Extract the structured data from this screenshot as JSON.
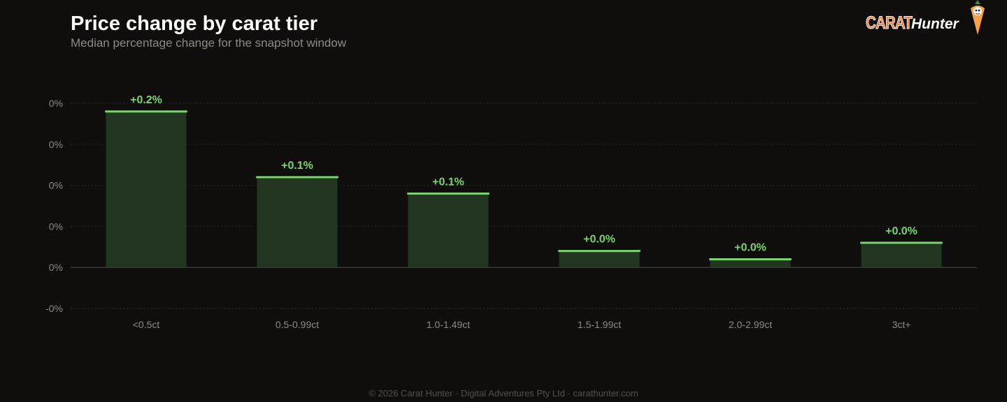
{
  "header": {
    "title": "Price change by carat tier",
    "subtitle": "Median percentage change for the snapshot window"
  },
  "brand": {
    "carat": "CARAT",
    "hunter": "Hunter",
    "accent": "#f47a3c"
  },
  "colors": {
    "bar_fill": "#233621",
    "bar_cap": "#7bd46e",
    "value_label": "#7bd46e",
    "grid": "#2a2826",
    "baseline": "#3a3835",
    "tick": "#8f8a82"
  },
  "chart_data": {
    "type": "bar",
    "categories": [
      "<0.5ct",
      "0.5-0.99ct",
      "1.0-1.49ct",
      "1.5-1.99ct",
      "2.0-2.99ct",
      "3ct+"
    ],
    "values": [
      0.19,
      0.11,
      0.09,
      0.02,
      0.01,
      0.03
    ],
    "data_labels": [
      "+0.2%",
      "+0.1%",
      "+0.1%",
      "+0.0%",
      "+0.0%",
      "+0.0%"
    ],
    "ylim": [
      -0.05,
      0.2
    ],
    "yticks": [
      0.2,
      0.15,
      0.1,
      0.05,
      0,
      -0.05
    ],
    "ytick_labels": [
      "0%",
      "0%",
      "0%",
      "0%",
      "0%",
      "-0%"
    ],
    "grid": true
  },
  "footer": {
    "text": "© 2026 Carat Hunter · Digital Adventures Pty Ltd · carathunter.com"
  }
}
